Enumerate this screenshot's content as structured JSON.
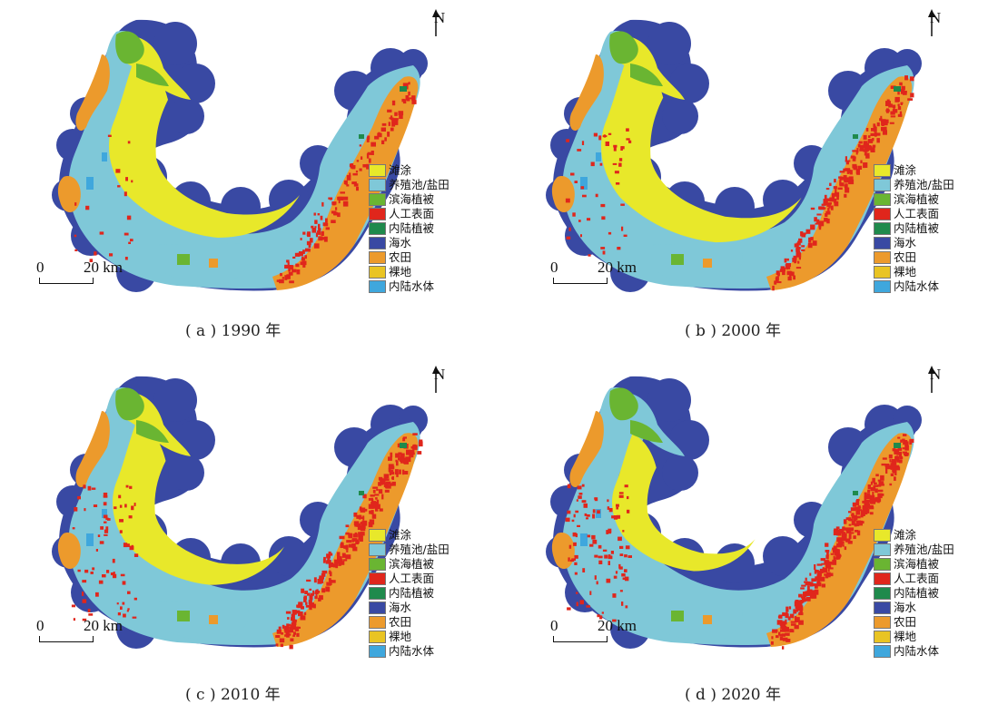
{
  "north_label": "N",
  "scale_label": {
    "zero": "0",
    "distance": "20 km"
  },
  "legend": [
    {
      "label": "滩涂",
      "color": "#e8e82a",
      "icon": "swatch"
    },
    {
      "label": "养殖池/盐田",
      "color": "#7fc8d8",
      "icon": "swatch"
    },
    {
      "label": "滨海植被",
      "color": "#6ab532",
      "icon": "swatch"
    },
    {
      "label": "人工表面",
      "color": "#e0261c",
      "icon": "swatch"
    },
    {
      "label": "内陆植被",
      "color": "#1f8a4c",
      "icon": "swatch"
    },
    {
      "label": "海水",
      "color": "#3949a3",
      "icon": "swatch"
    },
    {
      "label": "农田",
      "color": "#ec9a2c",
      "icon": "swatch"
    },
    {
      "label": "裸地",
      "color": "#e9c423",
      "icon": "swatch"
    },
    {
      "label": "内陆水体",
      "color": "#3fa7dd",
      "icon": "swatch"
    }
  ],
  "panels": [
    {
      "caption": "( a ) 1990 年",
      "year": "1990"
    },
    {
      "caption": "( b ) 2000 年",
      "year": "2000"
    },
    {
      "caption": "( c ) 2010 年",
      "year": "2010"
    },
    {
      "caption": "( d ) 2020 年",
      "year": "2020"
    }
  ]
}
